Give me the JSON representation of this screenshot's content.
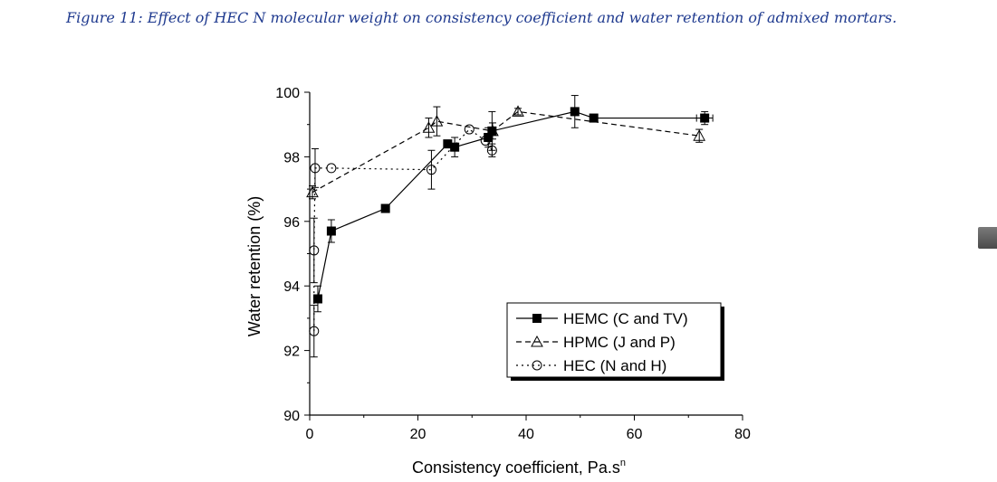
{
  "caption": "Figure 11: Effect of HEC N molecular weight on consistency coefficient and water retention of admixed mortars.",
  "chart_data": {
    "type": "scatter",
    "xlabel": "Consistency coefficient, Pa.s",
    "xlabel_sup": "n",
    "ylabel": "Water retention (%)",
    "xlim": [
      0,
      80
    ],
    "ylim": [
      90,
      100
    ],
    "xticks": [
      0,
      20,
      40,
      60,
      80
    ],
    "yticks": [
      90,
      92,
      94,
      96,
      98,
      100
    ],
    "legend_position": "center-right",
    "series": [
      {
        "name": "HEMC (C and TV)",
        "marker": "filled-square",
        "line": "solid",
        "color": "#000000",
        "points": [
          {
            "x": 1.5,
            "y": 93.6,
            "yerr": 0.4
          },
          {
            "x": 4,
            "y": 95.7,
            "yerr": 0.35
          },
          {
            "x": 14,
            "y": 96.4,
            "yerr": 0
          },
          {
            "x": 25.5,
            "y": 98.4,
            "yerr": 0.1
          },
          {
            "x": 26.8,
            "y": 98.3,
            "yerr": 0.3
          },
          {
            "x": 33,
            "y": 98.6,
            "yerr": 0.3
          },
          {
            "x": 33.7,
            "y": 98.8,
            "yerr": 0.6
          },
          {
            "x": 49,
            "y": 99.4,
            "yerr": 0.5
          },
          {
            "x": 52.5,
            "y": 99.2,
            "yerr": 0
          },
          {
            "x": 73,
            "y": 99.2,
            "yerr": 0.2,
            "xerr": 1.5
          }
        ]
      },
      {
        "name": "HPMC (J and P)",
        "marker": "open-triangle",
        "line": "dashed",
        "color": "#000000",
        "points": [
          {
            "x": 0.5,
            "y": 96.9,
            "yerr": 0.2
          },
          {
            "x": 22,
            "y": 98.9,
            "yerr": 0.3
          },
          {
            "x": 23.5,
            "y": 99.1,
            "yerr": 0.45
          },
          {
            "x": 33.8,
            "y": 98.8,
            "yerr": 0.25
          },
          {
            "x": 38.5,
            "y": 99.4,
            "yerr": 0.1
          },
          {
            "x": 72,
            "y": 98.65,
            "yerr": 0.2
          }
        ]
      },
      {
        "name": "HEC (N and H)",
        "marker": "open-circle",
        "line": "dotted",
        "color": "#000000",
        "points": [
          {
            "x": 0.8,
            "y": 92.6,
            "yerr": 0.8
          },
          {
            "x": 0.8,
            "y": 95.1,
            "yerr": 1.0
          },
          {
            "x": 1.0,
            "y": 97.65,
            "yerr": 0.6
          },
          {
            "x": 4.0,
            "y": 97.65,
            "yerr": 0
          },
          {
            "x": 22.5,
            "y": 97.6,
            "yerr": 0.6
          },
          {
            "x": 29.5,
            "y": 98.85,
            "yerr": 0
          },
          {
            "x": 32.5,
            "y": 98.5,
            "yerr": 0
          },
          {
            "x": 33.7,
            "y": 98.2,
            "yerr": 0.2
          }
        ]
      }
    ]
  }
}
